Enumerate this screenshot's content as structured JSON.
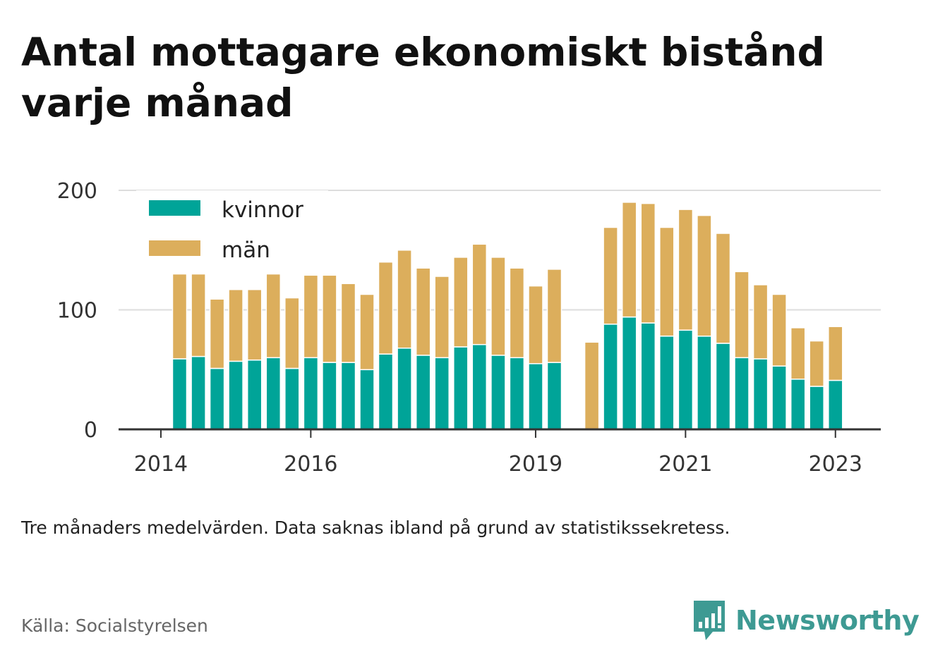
{
  "title": "Antal mottagare ekonomiskt bistånd varje månad",
  "note": "Tre månaders medelvärden. Data saknas ibland på grund av statistikssekretess.",
  "source": "Källa: Socialstyrelsen",
  "brand": {
    "name": "Newsworthy",
    "icon": "newsworthy-logo-icon",
    "color": "#3e9a93"
  },
  "colors": {
    "kvinnor": "#00a498",
    "man": "#dcae5c",
    "grid": "#dddddd",
    "axis": "#333333"
  },
  "chart_data": {
    "type": "bar",
    "stacked": true,
    "legend_position": "top-left",
    "grid": true,
    "ylim": [
      0,
      200
    ],
    "y_ticks": [
      0,
      100,
      200
    ],
    "x_ticks": [
      "2014",
      "2016",
      "2019",
      "2021",
      "2023"
    ],
    "xlabel": "",
    "ylabel": "",
    "x": [
      "2014-04",
      "2014-07",
      "2014-10",
      "2015-01",
      "2015-04",
      "2015-07",
      "2015-10",
      "2016-01",
      "2016-04",
      "2016-07",
      "2016-10",
      "2017-01",
      "2017-04",
      "2017-07",
      "2017-10",
      "2018-01",
      "2018-04",
      "2018-07",
      "2018-10",
      "2019-01",
      "2019-04",
      "2019-07",
      "2019-10",
      "2020-01",
      "2020-04",
      "2020-07",
      "2020-10",
      "2021-01",
      "2021-04",
      "2021-07",
      "2021-10",
      "2022-01",
      "2022-04",
      "2022-07",
      "2022-10",
      "2023-01",
      "2023-04"
    ],
    "series": [
      {
        "name": "kvinnor",
        "values": [
          59,
          61,
          51,
          57,
          58,
          60,
          51,
          60,
          56,
          56,
          50,
          63,
          68,
          62,
          60,
          69,
          71,
          62,
          60,
          55,
          56,
          null,
          null,
          88,
          94,
          89,
          78,
          83,
          78,
          72,
          60,
          59,
          53,
          42,
          36,
          41,
          null
        ]
      },
      {
        "name": "män",
        "values": [
          71,
          69,
          58,
          60,
          59,
          70,
          59,
          69,
          73,
          66,
          63,
          77,
          82,
          73,
          68,
          75,
          84,
          82,
          75,
          65,
          78,
          null,
          73,
          81,
          96,
          100,
          91,
          101,
          101,
          92,
          72,
          62,
          60,
          43,
          38,
          45,
          null
        ]
      }
    ]
  }
}
